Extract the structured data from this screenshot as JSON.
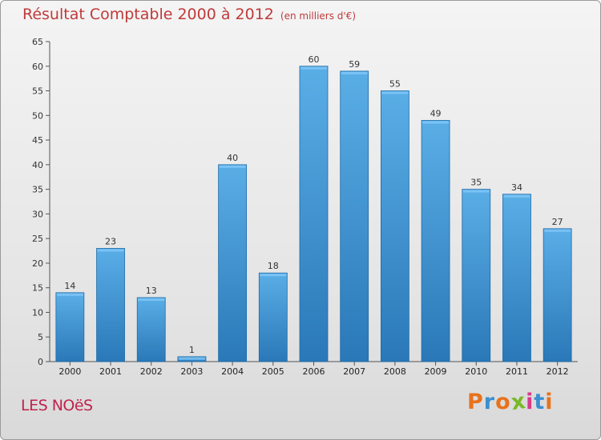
{
  "chart_data": {
    "type": "bar",
    "title": "Résultat Comptable 2000 à 2012",
    "subtitle": "(en milliers d'€)",
    "categories": [
      "2000",
      "2001",
      "2002",
      "2003",
      "2004",
      "2005",
      "2006",
      "2007",
      "2008",
      "2009",
      "2010",
      "2011",
      "2012"
    ],
    "values": [
      14,
      23,
      13,
      1,
      40,
      18,
      60,
      59,
      55,
      49,
      35,
      34,
      27
    ],
    "xlabel": "",
    "ylabel": "",
    "ylim": [
      0,
      65
    ],
    "yticks": [
      0,
      5,
      10,
      15,
      20,
      25,
      30,
      35,
      40,
      45,
      50,
      55,
      60,
      65
    ],
    "grid": false,
    "bar_color": "#4a9fd8"
  },
  "footer": {
    "place_name": "LES NOëS",
    "brand": "Proxiti"
  },
  "colors": {
    "title": "#c03a3a",
    "place": "#c0234c",
    "brand_letters": [
      "#e8721c",
      "#3a8fd0",
      "#e8721c",
      "#7ab826",
      "#d93a8a",
      "#3a8fd0",
      "#e8721c"
    ]
  }
}
